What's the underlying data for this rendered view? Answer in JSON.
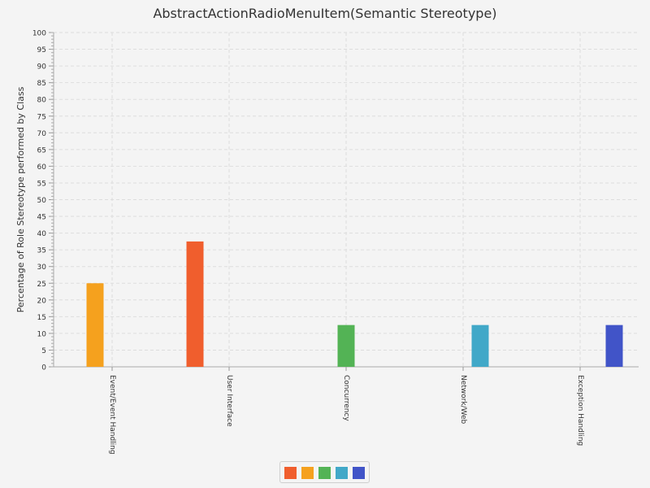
{
  "chart_data": {
    "type": "bar",
    "title": "AbstractActionRadioMenuItem(Semantic Stereotype)",
    "xlabel": "",
    "ylabel": "Percentage of Role Stereotype performed by Class",
    "ylim": [
      0,
      100
    ],
    "y_major_step": 5,
    "y_minor_step": 1,
    "grid": true,
    "categories": [
      "Event/Event Handling",
      "User Interface",
      "Concurrency",
      "Network/Web",
      "Exception Handling"
    ],
    "series": [
      {
        "color": "#f05e2d",
        "values": [
          0,
          37.5,
          0,
          0,
          0
        ]
      },
      {
        "color": "#f5a11e",
        "values": [
          25,
          0,
          0,
          0,
          0
        ]
      },
      {
        "color": "#53b355",
        "values": [
          0,
          0,
          12.5,
          0,
          0
        ]
      },
      {
        "color": "#41a8c8",
        "values": [
          0,
          0,
          0,
          12.5,
          0
        ]
      },
      {
        "color": "#4154c8",
        "values": [
          0,
          0,
          0,
          0,
          12.5
        ]
      }
    ],
    "legend": {
      "placement": "bottom-center"
    }
  }
}
